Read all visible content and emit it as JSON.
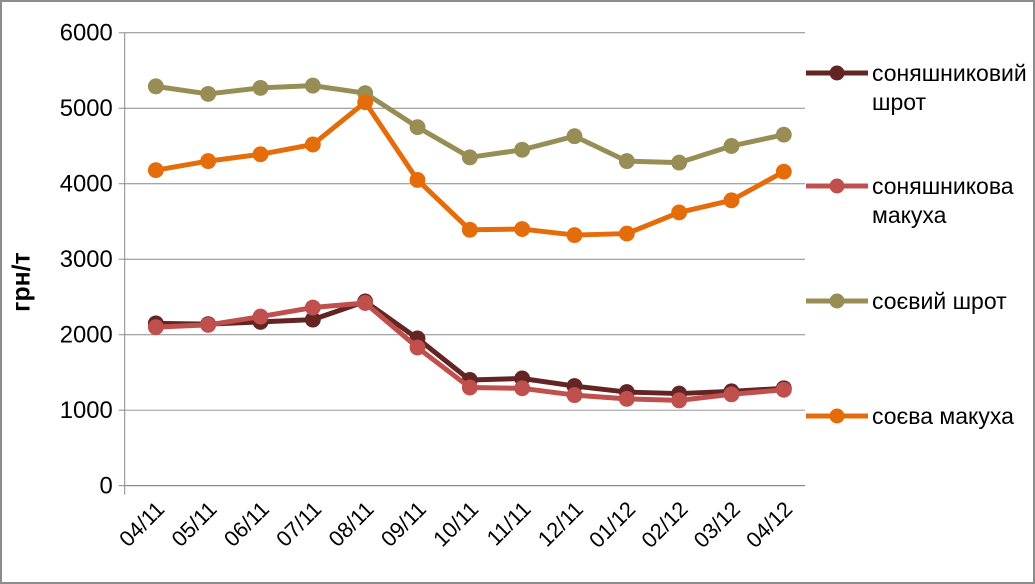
{
  "window": {
    "background": "#FFFFFF",
    "border_color": "#8C8C8C"
  },
  "chart_data": {
    "type": "line",
    "title": "",
    "xlabel": "",
    "ylabel": "грн/т",
    "ylim": [
      0,
      6000
    ],
    "ytick_labels": [
      0,
      1000,
      2000,
      3000,
      4000,
      5000,
      6000
    ],
    "grid": true,
    "legend_position": "right",
    "axis_color": "#898989",
    "gridline_color": "#898989",
    "text_color": "#000000",
    "categories": [
      "04/11",
      "05/11",
      "06/11",
      "07/11",
      "08/11",
      "09/11",
      "10/11",
      "11/11",
      "12/11",
      "01/12",
      "02/12",
      "03/12",
      "04/12"
    ],
    "series": [
      {
        "name": "соняшниковий шрот",
        "color": "#622523",
        "values": [
          2150,
          2140,
          2170,
          2200,
          2440,
          1950,
          1400,
          1420,
          1320,
          1240,
          1220,
          1250,
          1290
        ]
      },
      {
        "name": "соняшникова макуха",
        "color": "#C0504D",
        "values": [
          2100,
          2130,
          2240,
          2360,
          2420,
          1830,
          1300,
          1290,
          1200,
          1150,
          1130,
          1210,
          1270
        ]
      },
      {
        "name": "соєвий шрот",
        "color": "#978E55",
        "values": [
          5290,
          5190,
          5270,
          5300,
          5200,
          4750,
          4350,
          4450,
          4630,
          4300,
          4280,
          4500,
          4650
        ]
      },
      {
        "name": "соєва макуха",
        "color": "#E56C0A",
        "values": [
          4180,
          4300,
          4390,
          4520,
          5080,
          4050,
          3390,
          3400,
          3320,
          3340,
          3620,
          3780,
          4160
        ]
      }
    ]
  }
}
